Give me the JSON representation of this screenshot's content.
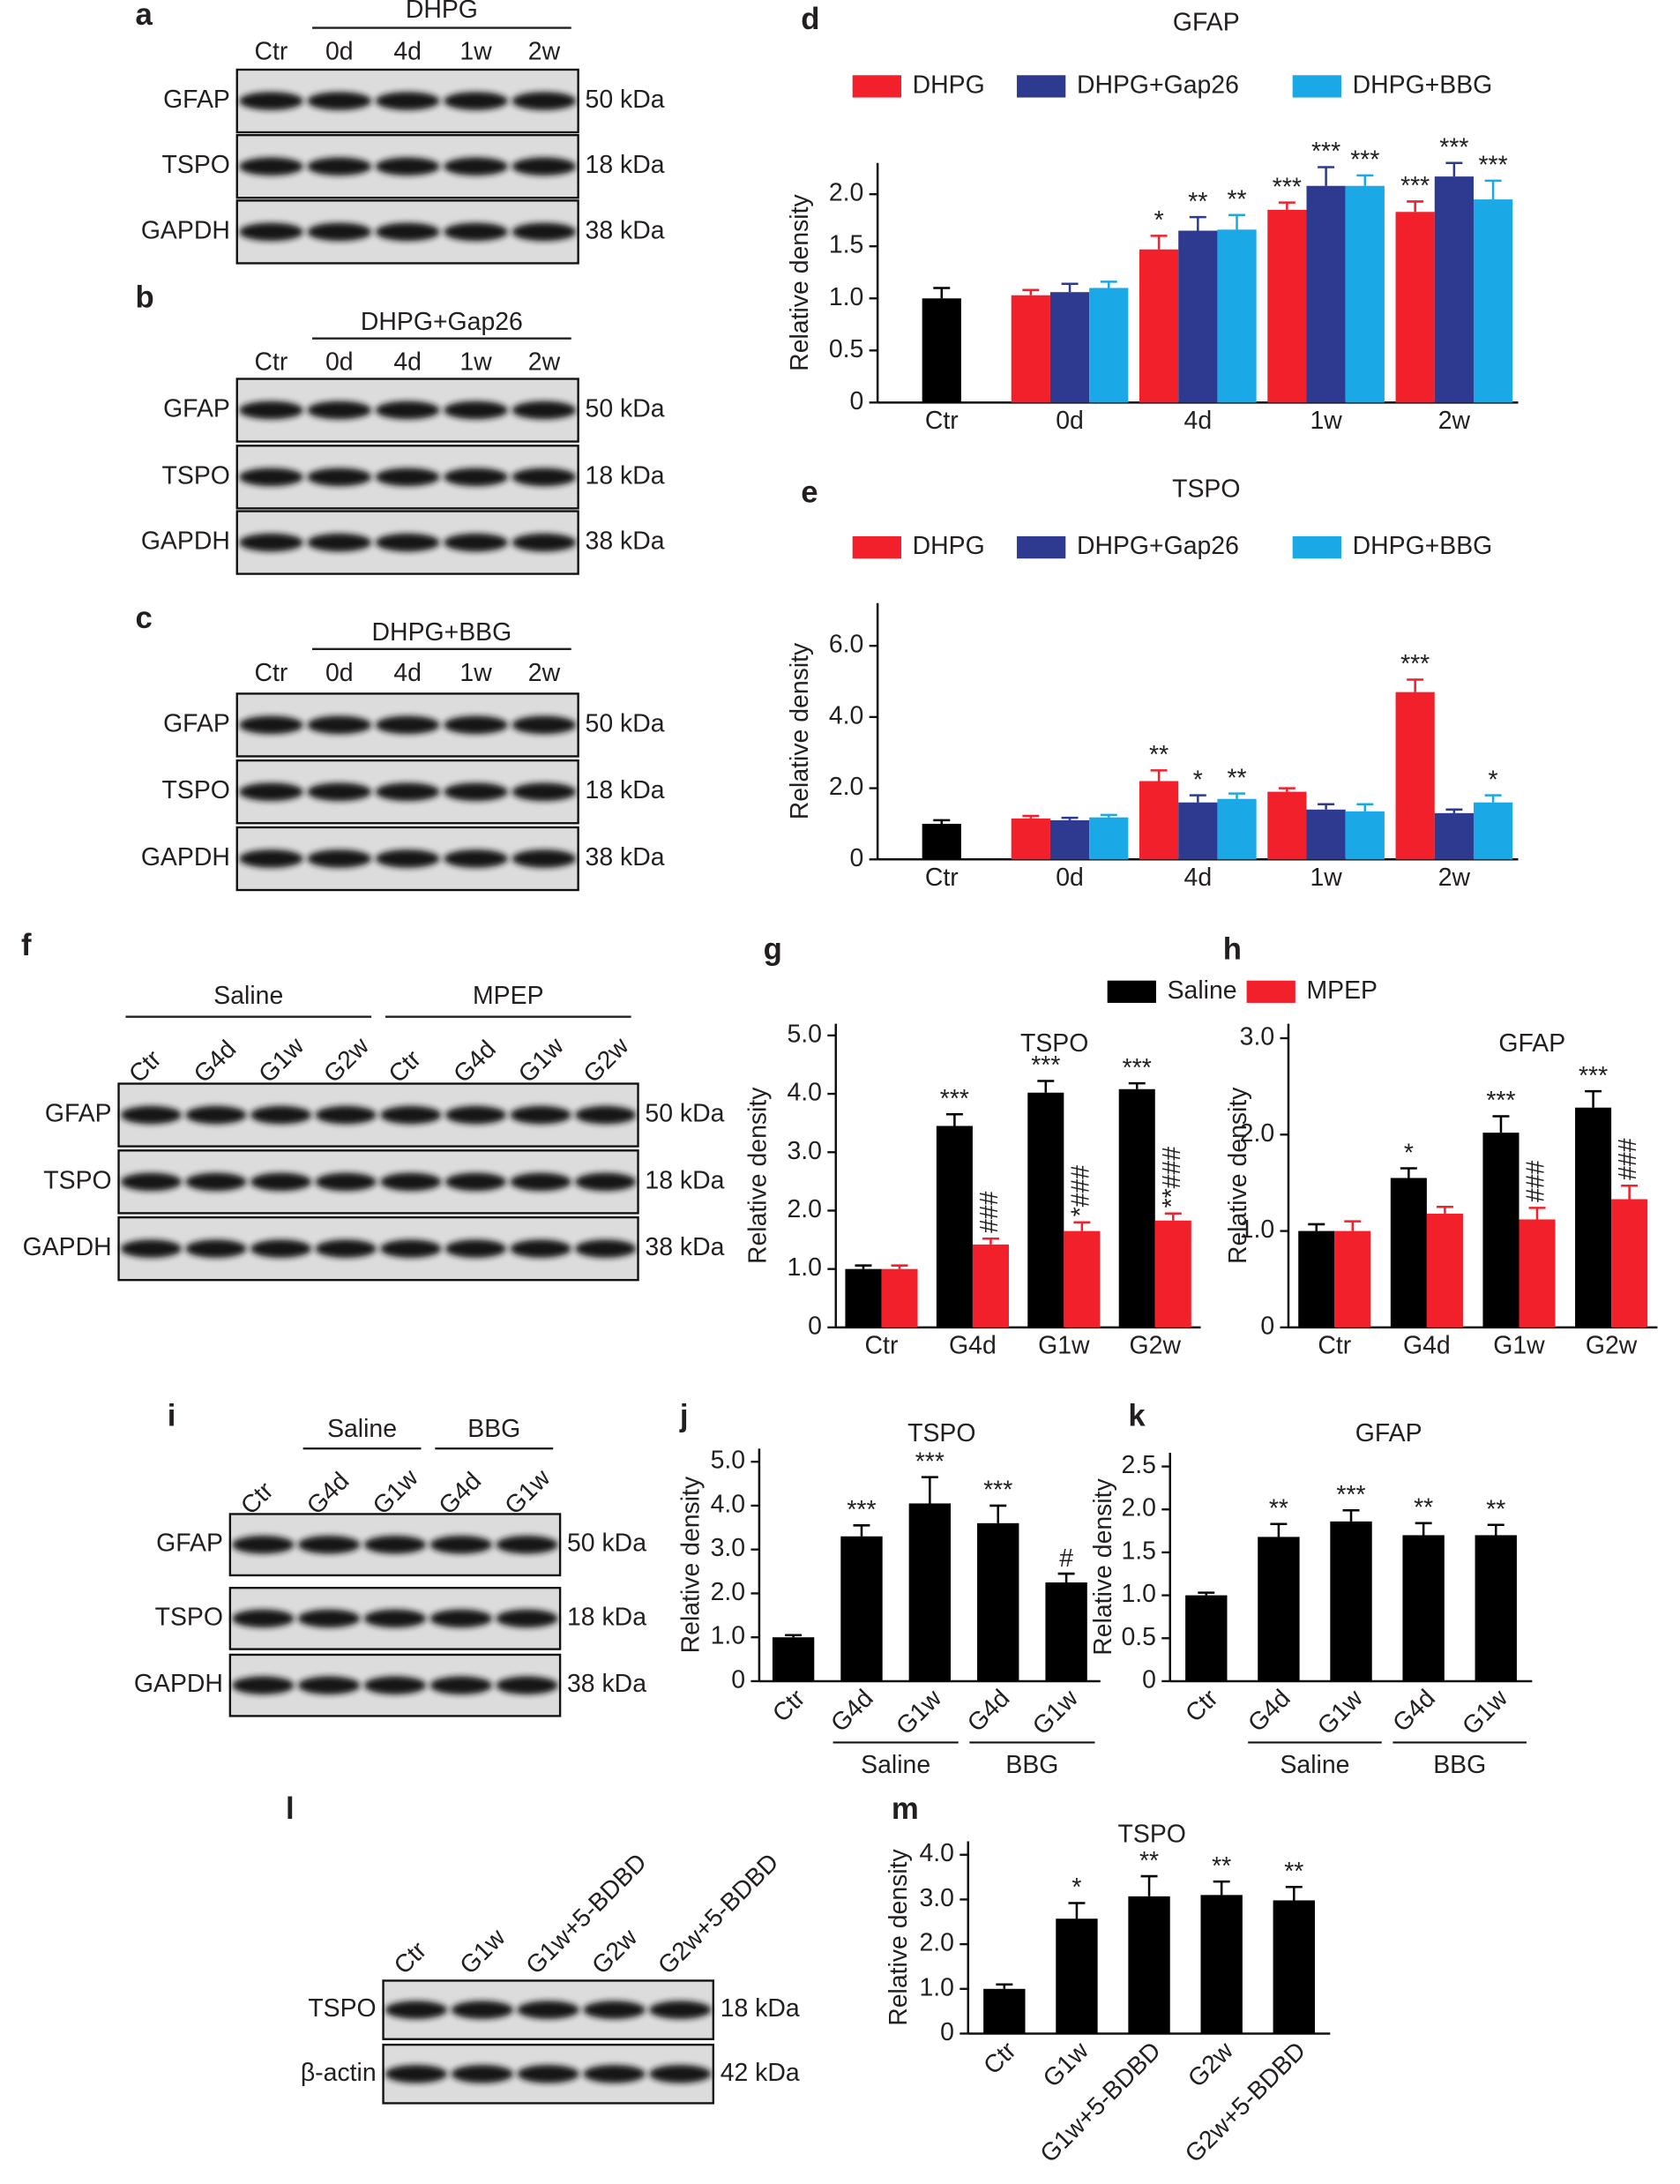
{
  "blots": [
    {
      "letter": "a",
      "groups": [
        {
          "label": "DHPG",
          "span": [
            1,
            4
          ]
        }
      ],
      "lanes": [
        "Ctr",
        "0d",
        "4d",
        "1w",
        "2w"
      ],
      "rows": [
        {
          "name": "GFAP",
          "size": "50 kDa"
        },
        {
          "name": "TSPO",
          "size": "18 kDa"
        },
        {
          "name": "GAPDH",
          "size": "38 kDa"
        }
      ]
    },
    {
      "letter": "b",
      "groups": [
        {
          "label": "DHPG+Gap26",
          "span": [
            1,
            4
          ]
        }
      ],
      "lanes": [
        "Ctr",
        "0d",
        "4d",
        "1w",
        "2w"
      ],
      "rows": [
        {
          "name": "GFAP",
          "size": "50 kDa"
        },
        {
          "name": "TSPO",
          "size": "18 kDa"
        },
        {
          "name": "GAPDH",
          "size": "38 kDa"
        }
      ]
    },
    {
      "letter": "c",
      "groups": [
        {
          "label": "DHPG+BBG",
          "span": [
            1,
            4
          ]
        }
      ],
      "lanes": [
        "Ctr",
        "0d",
        "4d",
        "1w",
        "2w"
      ],
      "rows": [
        {
          "name": "GFAP",
          "size": "50 kDa"
        },
        {
          "name": "TSPO",
          "size": "18 kDa"
        },
        {
          "name": "GAPDH",
          "size": "38 kDa"
        }
      ]
    },
    {
      "letter": "f",
      "groups": [
        {
          "label": "Saline",
          "span": [
            0,
            3
          ]
        },
        {
          "label": "MPEP",
          "span": [
            4,
            7
          ]
        }
      ],
      "lanes": [
        "Ctr",
        "G4d",
        "G1w",
        "G2w",
        "Ctr",
        "G4d",
        "G1w",
        "G2w"
      ],
      "rows": [
        {
          "name": "GFAP",
          "size": "50 kDa"
        },
        {
          "name": "TSPO",
          "size": "18 kDa"
        },
        {
          "name": "GAPDH",
          "size": "38 kDa"
        }
      ]
    },
    {
      "letter": "i",
      "groups": [
        {
          "label": "Saline",
          "span": [
            1,
            2
          ]
        },
        {
          "label": "BBG",
          "span": [
            3,
            4
          ]
        }
      ],
      "lanes": [
        "Ctr",
        "G4d",
        "G1w",
        "G4d",
        "G1w"
      ],
      "rows": [
        {
          "name": "GFAP",
          "size": "50 kDa"
        },
        {
          "name": "TSPO",
          "size": "18 kDa"
        },
        {
          "name": "GAPDH",
          "size": "38 kDa"
        }
      ]
    },
    {
      "letter": "l",
      "groups": [],
      "lanes": [
        "Ctr",
        "G1w",
        "G1w+5-BDBD",
        "G2w",
        "G2w+5-BDBD"
      ],
      "rows": [
        {
          "name": "TSPO",
          "size": "18 kDa"
        },
        {
          "name": "β-actin",
          "size": "42 kDa"
        }
      ]
    }
  ],
  "chart_data": [
    {
      "type": "bar",
      "panel": "d",
      "title": "GFAP",
      "ylabel": "Relative density",
      "categories": [
        "Ctr",
        "0d",
        "4d",
        "1w",
        "2w"
      ],
      "ylim": [
        0,
        2.3
      ],
      "yticks": [
        0,
        {
          "value": 0.5,
          "label": "0.5"
        },
        {
          "value": 1,
          "label": "1.0"
        },
        {
          "value": 1.5,
          "label": "1.5"
        },
        {
          "value": 2,
          "label": "2.0"
        }
      ],
      "legend": "top",
      "series": [
        {
          "color": "#000000",
          "values": [
            1.0,
            null,
            null,
            null,
            null
          ],
          "errors": [
            0.1,
            null,
            null,
            null,
            null
          ]
        },
        {
          "name": "DHPG",
          "color": "#f2202b",
          "label_color": "#f2202b",
          "values": [
            null,
            1.03,
            1.47,
            1.85,
            1.83
          ],
          "errors": [
            null,
            0.05,
            0.13,
            0.07,
            0.1
          ],
          "labels": [
            null,
            null,
            "*",
            "***",
            "***"
          ]
        },
        {
          "name": "DHPG+Gap26",
          "color": "#2e3a8f",
          "label_color": "#2e3a8f",
          "values": [
            null,
            1.06,
            1.65,
            2.08,
            2.17
          ],
          "errors": [
            null,
            0.08,
            0.13,
            0.18,
            0.13
          ],
          "labels": [
            null,
            null,
            "**",
            "***",
            "***"
          ]
        },
        {
          "name": "DHPG+BBG",
          "color": "#1ba8e6",
          "label_color": "#1ba8e6",
          "values": [
            null,
            1.1,
            1.66,
            2.08,
            1.95
          ],
          "errors": [
            null,
            0.06,
            0.14,
            0.1,
            0.18
          ],
          "labels": [
            null,
            null,
            "**",
            "***",
            "***"
          ]
        }
      ]
    },
    {
      "type": "bar",
      "panel": "e",
      "title": "TSPO",
      "ylabel": "Relative density",
      "categories": [
        "Ctr",
        "0d",
        "4d",
        "1w",
        "2w"
      ],
      "ylim": [
        0,
        7.2
      ],
      "yticks": [
        0,
        {
          "value": 2,
          "label": "2.0"
        },
        {
          "value": 4,
          "label": "4.0"
        },
        {
          "value": 6,
          "label": "6.0"
        }
      ],
      "legend": "top",
      "series": [
        {
          "color": "#000000",
          "values": [
            1.0,
            null,
            null,
            null,
            null
          ],
          "errors": [
            0.1,
            null,
            null,
            null,
            null
          ]
        },
        {
          "name": "DHPG",
          "color": "#f2202b",
          "label_color": "#f2202b",
          "values": [
            null,
            1.15,
            2.2,
            1.9,
            4.7
          ],
          "errors": [
            null,
            0.07,
            0.3,
            0.1,
            0.35
          ],
          "labels": [
            null,
            null,
            "**",
            null,
            "***"
          ]
        },
        {
          "name": "DHPG+Gap26",
          "color": "#2e3a8f",
          "label_color": "#2e3a8f",
          "values": [
            null,
            1.1,
            1.6,
            1.4,
            1.3
          ],
          "errors": [
            null,
            0.07,
            0.2,
            0.15,
            0.1
          ],
          "labels": [
            null,
            null,
            "*",
            null,
            null
          ]
        },
        {
          "name": "DHPG+BBG",
          "color": "#1ba8e6",
          "label_color": "#1ba8e6",
          "values": [
            null,
            1.18,
            1.7,
            1.35,
            1.6
          ],
          "errors": [
            null,
            0.07,
            0.15,
            0.2,
            0.2
          ],
          "labels": [
            null,
            null,
            "**",
            null,
            "*"
          ]
        }
      ]
    },
    {
      "type": "bar",
      "panel": "g",
      "title": "TSPO",
      "ylabel": "Relative density",
      "categories": [
        "Ctr",
        "G4d",
        "G1w",
        "G2w"
      ],
      "ylim": [
        0,
        5.2
      ],
      "yticks": [
        0,
        {
          "value": 1,
          "label": "1.0"
        },
        {
          "value": 2,
          "label": "2.0"
        },
        {
          "value": 3,
          "label": "3.0"
        },
        {
          "value": 4,
          "label": "4.0"
        },
        {
          "value": 5,
          "label": "5.0"
        }
      ],
      "legend": "top",
      "series": [
        {
          "name": "Saline",
          "color": "#000000",
          "values": [
            1.0,
            3.45,
            4.02,
            4.08
          ],
          "errors": [
            0.06,
            0.2,
            0.2,
            0.1
          ],
          "labels": [
            null,
            "***",
            "***",
            "***"
          ]
        },
        {
          "name": "MPEP",
          "color": "#f2202b",
          "label_rotation": 90,
          "values": [
            1.0,
            1.42,
            1.65,
            1.83
          ],
          "errors": [
            0.06,
            0.1,
            0.15,
            0.12
          ],
          "labels": [
            null,
            "###",
            "*###",
            "**###"
          ]
        }
      ]
    },
    {
      "type": "bar",
      "panel": "h",
      "title": "GFAP",
      "ylabel": "Relative density",
      "categories": [
        "Ctr",
        "G4d",
        "G1w",
        "G2w"
      ],
      "ylim": [
        0,
        3.15
      ],
      "yticks": [
        0,
        {
          "value": 1,
          "label": "1.0"
        },
        {
          "value": 2,
          "label": "2.0"
        },
        {
          "value": 3,
          "label": "3.0"
        }
      ],
      "series": [
        {
          "color": "#000000",
          "values": [
            1.0,
            1.55,
            2.02,
            2.28
          ],
          "errors": [
            0.07,
            0.1,
            0.17,
            0.17
          ],
          "labels": [
            null,
            "*",
            "***",
            "***"
          ]
        },
        {
          "color": "#f2202b",
          "label_rotation": 90,
          "values": [
            1.0,
            1.18,
            1.12,
            1.33
          ],
          "errors": [
            0.1,
            0.07,
            0.12,
            0.14
          ],
          "labels": [
            null,
            null,
            "###",
            "###"
          ]
        }
      ]
    },
    {
      "type": "bar",
      "panel": "j",
      "title": "TSPO",
      "ylabel": "Relative density",
      "categories": [
        "Ctr",
        "G4d",
        "G1w",
        "G4d",
        "G1w"
      ],
      "xtick_rotation": 45,
      "groups": [
        {
          "label": "Saline",
          "span": [
            1,
            2
          ]
        },
        {
          "label": "BBG",
          "span": [
            3,
            4
          ]
        }
      ],
      "ylim": [
        0,
        5.3
      ],
      "yticks": [
        0,
        {
          "value": 1,
          "label": "1.0"
        },
        {
          "value": 2,
          "label": "2.0"
        },
        {
          "value": 3,
          "label": "3.0"
        },
        {
          "value": 4,
          "label": "4.0"
        },
        {
          "value": 5,
          "label": "5.0"
        }
      ],
      "series": [
        {
          "color": "#000000",
          "values": [
            1.0,
            3.3,
            4.05,
            3.6,
            2.25
          ],
          "errors": [
            0.05,
            0.25,
            0.6,
            0.4,
            0.2
          ],
          "labels": [
            null,
            "***",
            "***",
            "***",
            "#"
          ]
        }
      ]
    },
    {
      "type": "bar",
      "panel": "k",
      "title": "GFAP",
      "ylabel": "Relative density",
      "categories": [
        "Ctr",
        "G4d",
        "G1w",
        "G4d",
        "G1w"
      ],
      "xtick_rotation": 45,
      "groups": [
        {
          "label": "Saline",
          "span": [
            1,
            2
          ]
        },
        {
          "label": "BBG",
          "span": [
            3,
            4
          ]
        }
      ],
      "ylim": [
        0,
        2.66
      ],
      "yticks": [
        0,
        {
          "value": 0.5,
          "label": "0.5"
        },
        {
          "value": 1,
          "label": "1.0"
        },
        {
          "value": 1.5,
          "label": "1.5"
        },
        {
          "value": 2,
          "label": "2.0"
        },
        {
          "value": 2.5,
          "label": "2.5"
        }
      ],
      "series": [
        {
          "color": "#000000",
          "values": [
            1.0,
            1.68,
            1.86,
            1.7,
            1.7
          ],
          "errors": [
            0.03,
            0.15,
            0.13,
            0.14,
            0.12
          ],
          "labels": [
            null,
            "**",
            "***",
            "**",
            "**"
          ]
        }
      ]
    },
    {
      "type": "bar",
      "panel": "m",
      "title": "TSPO",
      "ylabel": "Relative density",
      "categories": [
        "Ctr",
        "G1w",
        "G1w+5-BDBD",
        "G2w",
        "G2w+5-BDBD"
      ],
      "xtick_rotation": 45,
      "ylim": [
        0,
        4.3
      ],
      "yticks": [
        0,
        {
          "value": 1,
          "label": "1.0"
        },
        {
          "value": 2,
          "label": "2.0"
        },
        {
          "value": 3,
          "label": "3.0"
        },
        {
          "value": 4,
          "label": "4.0"
        }
      ],
      "series": [
        {
          "color": "#000000",
          "values": [
            1.0,
            2.57,
            3.07,
            3.1,
            2.98
          ],
          "errors": [
            0.1,
            0.35,
            0.45,
            0.3,
            0.3
          ],
          "labels": [
            null,
            "*",
            "**",
            "**",
            "**"
          ]
        }
      ]
    }
  ]
}
